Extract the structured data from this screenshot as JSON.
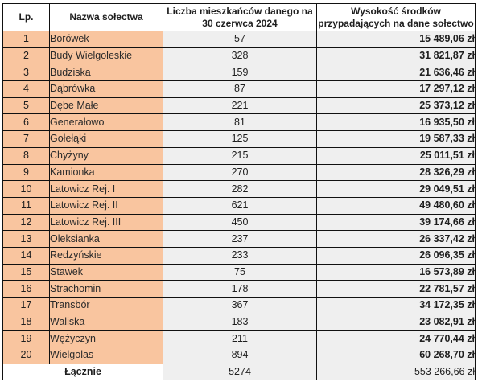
{
  "table": {
    "headers": {
      "lp": "Lp.",
      "name": "Nazwa sołectwa",
      "population": "Liczba mieszkańców danego na 30 czerwca 2024",
      "amount": "Wysokość środków przypadających na dane sołectwo"
    },
    "rows": [
      {
        "lp": "1",
        "name": "Borówek",
        "population": "57",
        "amount": "15 489,06 zł"
      },
      {
        "lp": "2",
        "name": "Budy Wielgoleskie",
        "population": "328",
        "amount": "31 821,87 zł"
      },
      {
        "lp": "3",
        "name": "Budziska",
        "population": "159",
        "amount": "21 636,46 zł"
      },
      {
        "lp": "4",
        "name": "Dąbrówka",
        "population": "87",
        "amount": "17 297,12 zł"
      },
      {
        "lp": "5",
        "name": "Dębe Małe",
        "population": "221",
        "amount": "25 373,12 zł"
      },
      {
        "lp": "6",
        "name": "Generałowo",
        "population": "81",
        "amount": "16 935,50 zł"
      },
      {
        "lp": "7",
        "name": "Gołełąki",
        "population": "125",
        "amount": "19 587,33 zł"
      },
      {
        "lp": "8",
        "name": "Chyżyny",
        "population": "215",
        "amount": "25 011,51 zł"
      },
      {
        "lp": "9",
        "name": "Kamionka",
        "population": "270",
        "amount": "28 326,29 zł"
      },
      {
        "lp": "10",
        "name": "Latowicz Rej. I",
        "population": "282",
        "amount": "29 049,51 zł"
      },
      {
        "lp": "11",
        "name": "Latowicz Rej. II",
        "population": "621",
        "amount": "49 480,60 zł"
      },
      {
        "lp": "12",
        "name": "Latowicz Rej. III",
        "population": "450",
        "amount": "39 174,66 zł"
      },
      {
        "lp": "13",
        "name": "Oleksianka",
        "population": "237",
        "amount": "26 337,42 zł"
      },
      {
        "lp": "14",
        "name": "Redzyńskie",
        "population": "233",
        "amount": "26 096,35 zł"
      },
      {
        "lp": "15",
        "name": "Stawek",
        "population": "75",
        "amount": "16 573,89 zł"
      },
      {
        "lp": "16",
        "name": "Strachomin",
        "population": "178",
        "amount": "22 781,57 zł"
      },
      {
        "lp": "17",
        "name": "Transbór",
        "population": "367",
        "amount": "34 172,35 zł"
      },
      {
        "lp": "18",
        "name": "Waliska",
        "population": "183",
        "amount": "23 082,91 zł"
      },
      {
        "lp": "19",
        "name": "Wężyczyn",
        "population": "211",
        "amount": "24 770,44 zł"
      },
      {
        "lp": "20",
        "name": "Wielgolas",
        "population": "894",
        "amount": "60 268,70 zł"
      }
    ],
    "total": {
      "label": "Łącznie",
      "population": "5274",
      "amount": "553 266,66 zł"
    },
    "colors": {
      "highlight": "#f9c59f",
      "shaded": "#efefef",
      "border": "#111111"
    }
  }
}
